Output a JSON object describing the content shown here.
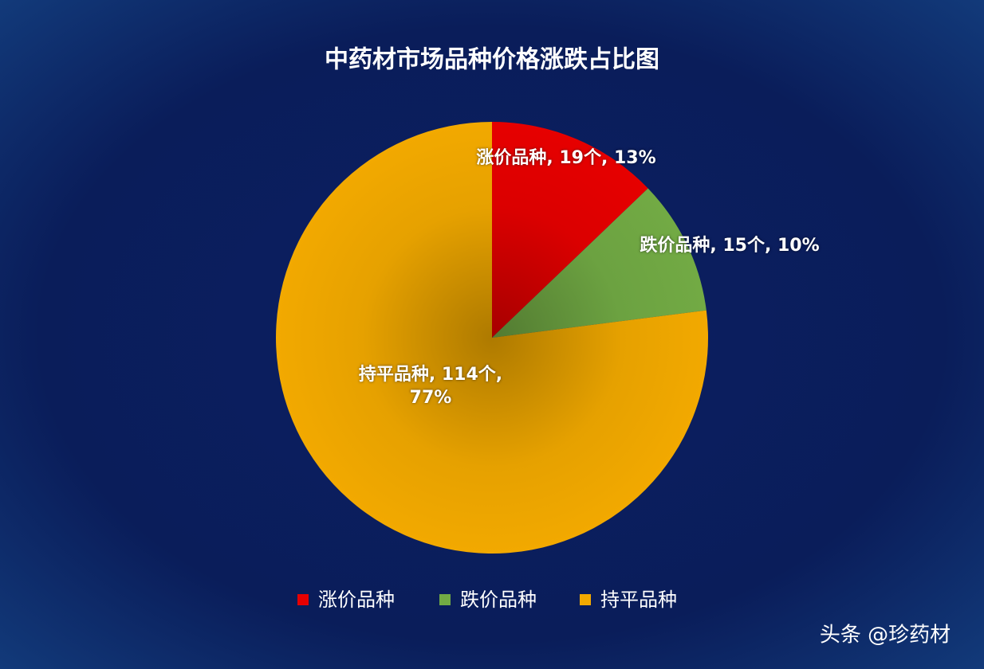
{
  "chart_data": {
    "type": "pie",
    "title": "中药材市场品种价格涨跌占比图",
    "categories": [
      "涨价品种",
      "跌价品种",
      "持平品种"
    ],
    "values": [
      19,
      15,
      114
    ],
    "value_labels": [
      "涨价品种, 19个, 13%",
      "跌价品种, 15个, 10%",
      "持平品种, 114个, 77%"
    ],
    "colors": [
      "#e60000",
      "#72aa44",
      "#f2a900"
    ],
    "legend": "bottom"
  },
  "watermark": "头条 @珍药材"
}
